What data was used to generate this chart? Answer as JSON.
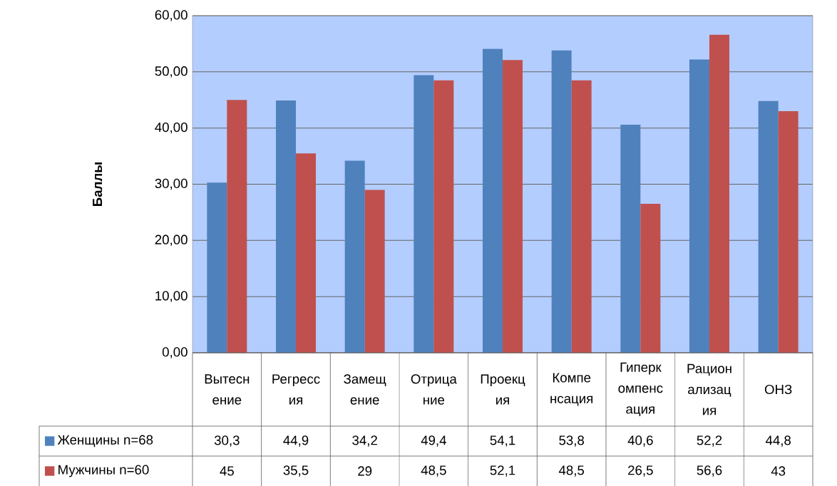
{
  "chart_data": {
    "type": "bar",
    "ylabel": "Баллы",
    "categories": [
      "Вытесн ение",
      "Регресс ия",
      "Замещ ение",
      "Отрица ние",
      "Проекц ия",
      "Компе нсация",
      "Гиперк омпенс ация",
      "Рацион ализац ия",
      "ОНЗ"
    ],
    "series": [
      {
        "name": "Женщины n=68",
        "color": "#4f81bd",
        "values": [
          30.3,
          44.9,
          34.2,
          49.4,
          54.1,
          53.8,
          40.6,
          52.2,
          44.8
        ],
        "value_labels": [
          "30,3",
          "44,9",
          "34,2",
          "49,4",
          "54,1",
          "53,8",
          "40,6",
          "52,2",
          "44,8"
        ]
      },
      {
        "name": "Мужчины n=60",
        "color": "#c0504d",
        "values": [
          45,
          35.5,
          29,
          48.5,
          52.1,
          48.5,
          26.5,
          56.6,
          43
        ],
        "value_labels": [
          "45",
          "35,5",
          "29",
          "48,5",
          "52,1",
          "48,5",
          "26,5",
          "56,6",
          "43"
        ]
      }
    ],
    "ylim": [
      0,
      60
    ],
    "yticks": [
      {
        "value": 0,
        "label": "0,00"
      },
      {
        "value": 10,
        "label": "10,00"
      },
      {
        "value": 20,
        "label": "20,00"
      },
      {
        "value": 30,
        "label": "30,00"
      },
      {
        "value": 40,
        "label": "40,00"
      },
      {
        "value": 50,
        "label": "50,00"
      },
      {
        "value": 60,
        "label": "60,00"
      }
    ],
    "grid": "y",
    "legend": "bottom"
  }
}
